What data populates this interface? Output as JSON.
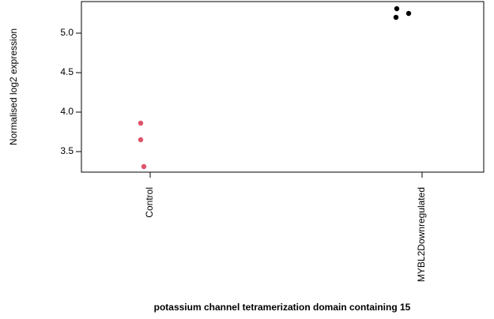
{
  "chart_data": {
    "type": "strip",
    "x_label": "potassium channel tetramerization domain containing 15",
    "y_label": "Normalised log2 expression",
    "categories": [
      "Control",
      "MYBL2Downregulated"
    ],
    "values": [
      [
        3.86,
        3.65,
        3.31
      ],
      [
        5.31,
        5.2,
        5.25
      ]
    ],
    "colors": [
      "#DF536B",
      "#000000"
    ],
    "ylim": [
      3.24,
      5.4
    ],
    "yticks": [
      3.5,
      {
        "value": 4.0,
        "label": "4.0"
      },
      4.5,
      {
        "value": 5.0,
        "label": "5.0"
      }
    ]
  }
}
